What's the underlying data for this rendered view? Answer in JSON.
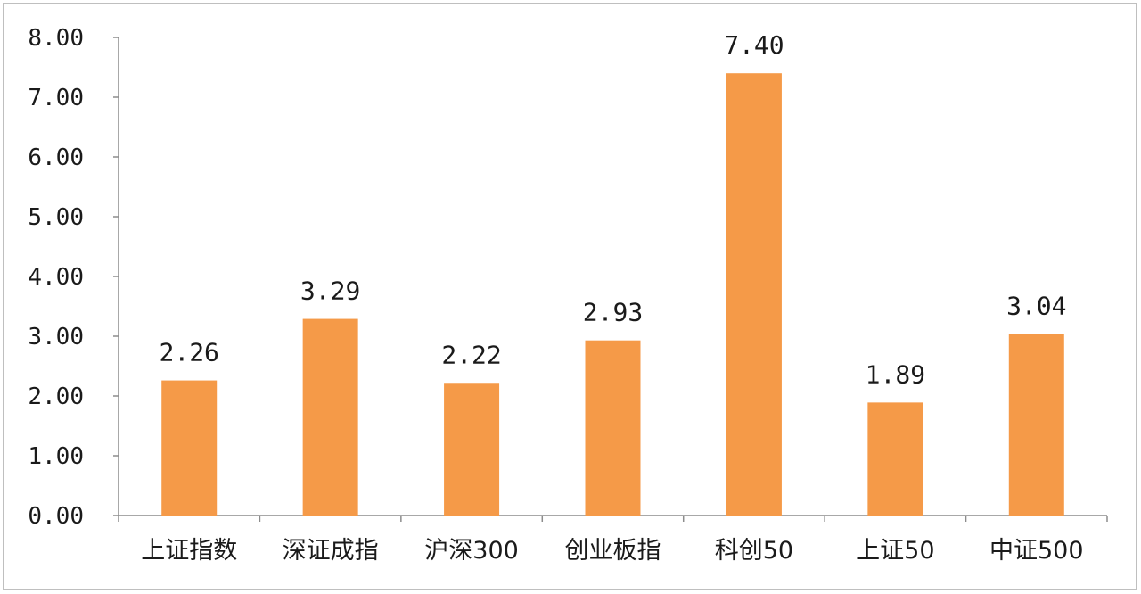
{
  "chart_data": {
    "type": "bar",
    "categories": [
      "上证指数",
      "深证成指",
      "沪深300",
      "创业板指",
      "科创50",
      "上证50",
      "中证500"
    ],
    "values": [
      2.26,
      3.29,
      2.22,
      2.93,
      7.4,
      1.89,
      3.04
    ],
    "value_labels": [
      "2.26",
      "3.29",
      "2.22",
      "2.93",
      "7.40",
      "1.89",
      "3.04"
    ],
    "ylim": [
      0,
      8
    ],
    "yticks": [
      0,
      1,
      2,
      3,
      4,
      5,
      6,
      7,
      8
    ],
    "ytick_labels": [
      "0.00",
      "1.00",
      "2.00",
      "3.00",
      "4.00",
      "5.00",
      "6.00",
      "7.00",
      "8.00"
    ],
    "grid": false,
    "bar_color": "#F59A48",
    "axis_color": "#8c8c8c"
  }
}
